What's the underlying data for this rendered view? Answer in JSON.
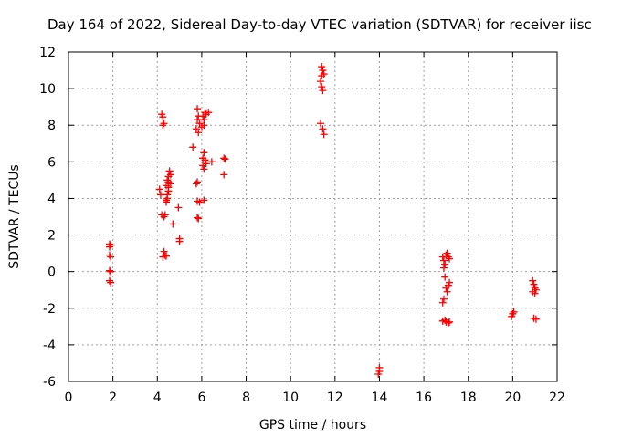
{
  "chart_data": {
    "type": "scatter",
    "title": "Day 164 of 2022, Sidereal Day-to-day VTEC variation (SDTVAR) for receiver iisc",
    "xlabel": "GPS time / hours",
    "ylabel": "SDTVAR / TECUs",
    "xlim": [
      0,
      22
    ],
    "ylim": [
      -6,
      12
    ],
    "xticks": [
      0,
      2,
      4,
      6,
      8,
      10,
      12,
      14,
      16,
      18,
      20,
      22
    ],
    "yticks": [
      -6,
      -4,
      -2,
      0,
      2,
      4,
      6,
      8,
      10,
      12
    ],
    "grid": true,
    "marker": "+",
    "marker_color": "#ff0000",
    "series": [
      {
        "name": "SDTVAR",
        "points": [
          [
            1.85,
            1.5
          ],
          [
            1.85,
            1.35
          ],
          [
            1.9,
            1.45
          ],
          [
            1.85,
            0.9
          ],
          [
            1.9,
            0.8
          ],
          [
            1.85,
            0.05
          ],
          [
            1.9,
            0.0
          ],
          [
            1.85,
            -0.5
          ],
          [
            1.9,
            -0.6
          ],
          [
            4.2,
            8.6
          ],
          [
            4.25,
            8.45
          ],
          [
            4.3,
            8.1
          ],
          [
            4.25,
            8.0
          ],
          [
            4.1,
            4.5
          ],
          [
            4.15,
            4.2
          ],
          [
            4.2,
            3.1
          ],
          [
            4.3,
            3.0
          ],
          [
            4.3,
            1.1
          ],
          [
            4.35,
            0.9
          ],
          [
            4.25,
            0.8
          ],
          [
            4.4,
            0.85
          ],
          [
            4.4,
            4.7
          ],
          [
            4.45,
            5.0
          ],
          [
            4.5,
            5.2
          ],
          [
            4.5,
            4.4
          ],
          [
            4.45,
            4.0
          ],
          [
            4.4,
            3.8
          ],
          [
            4.55,
            5.5
          ],
          [
            4.5,
            4.9
          ],
          [
            4.5,
            4.6
          ],
          [
            4.6,
            4.8
          ],
          [
            4.6,
            5.3
          ],
          [
            4.45,
            4.2
          ],
          [
            4.4,
            3.9
          ],
          [
            4.35,
            3.1
          ],
          [
            4.7,
            2.6
          ],
          [
            4.95,
            3.5
          ],
          [
            5.0,
            1.8
          ],
          [
            5.0,
            1.65
          ],
          [
            5.6,
            6.8
          ],
          [
            5.8,
            8.9
          ],
          [
            5.85,
            8.5
          ],
          [
            5.8,
            8.3
          ],
          [
            5.9,
            8.1
          ],
          [
            5.75,
            7.8
          ],
          [
            5.85,
            7.6
          ],
          [
            6.0,
            7.9
          ],
          [
            5.8,
            4.9
          ],
          [
            5.75,
            4.8
          ],
          [
            5.8,
            3.85
          ],
          [
            5.9,
            3.8
          ],
          [
            5.8,
            2.95
          ],
          [
            5.85,
            2.9
          ],
          [
            6.05,
            8.5
          ],
          [
            6.1,
            8.3
          ],
          [
            6.15,
            8.7
          ],
          [
            6.2,
            8.6
          ],
          [
            6.1,
            8.0
          ],
          [
            6.1,
            6.5
          ],
          [
            6.05,
            6.2
          ],
          [
            6.15,
            6.1
          ],
          [
            6.05,
            5.8
          ],
          [
            6.1,
            5.6
          ],
          [
            6.2,
            5.9
          ],
          [
            6.1,
            3.9
          ],
          [
            6.3,
            8.7
          ],
          [
            6.45,
            6.0
          ],
          [
            7.0,
            6.2
          ],
          [
            7.05,
            6.15
          ],
          [
            7.0,
            5.3
          ],
          [
            11.4,
            11.2
          ],
          [
            11.45,
            11.0
          ],
          [
            11.4,
            10.7
          ],
          [
            11.35,
            10.4
          ],
          [
            11.4,
            10.1
          ],
          [
            11.45,
            9.9
          ],
          [
            11.5,
            10.8
          ],
          [
            11.35,
            8.1
          ],
          [
            11.45,
            7.8
          ],
          [
            11.5,
            7.5
          ],
          [
            14.0,
            -5.25
          ],
          [
            14.0,
            -5.45
          ],
          [
            13.95,
            -5.6
          ],
          [
            16.85,
            0.8
          ],
          [
            16.9,
            0.6
          ],
          [
            16.95,
            0.4
          ],
          [
            17.0,
            0.9
          ],
          [
            17.05,
            1.0
          ],
          [
            17.1,
            0.8
          ],
          [
            17.15,
            0.7
          ],
          [
            16.9,
            0.2
          ],
          [
            16.95,
            -0.3
          ],
          [
            17.0,
            -0.9
          ],
          [
            17.05,
            -1.1
          ],
          [
            16.9,
            -1.5
          ],
          [
            16.85,
            -1.7
          ],
          [
            17.1,
            -0.75
          ],
          [
            17.15,
            -0.6
          ],
          [
            16.85,
            -2.7
          ],
          [
            16.95,
            -2.65
          ],
          [
            17.0,
            -2.75
          ],
          [
            17.1,
            -2.8
          ],
          [
            17.15,
            -2.75
          ],
          [
            19.95,
            -2.45
          ],
          [
            20.0,
            -2.3
          ],
          [
            20.05,
            -2.2
          ],
          [
            20.9,
            -0.5
          ],
          [
            20.95,
            -0.7
          ],
          [
            21.0,
            -0.9
          ],
          [
            20.9,
            -1.1
          ],
          [
            21.0,
            -1.2
          ],
          [
            21.05,
            -1.0
          ],
          [
            20.95,
            -2.55
          ],
          [
            21.05,
            -2.6
          ]
        ]
      }
    ]
  }
}
